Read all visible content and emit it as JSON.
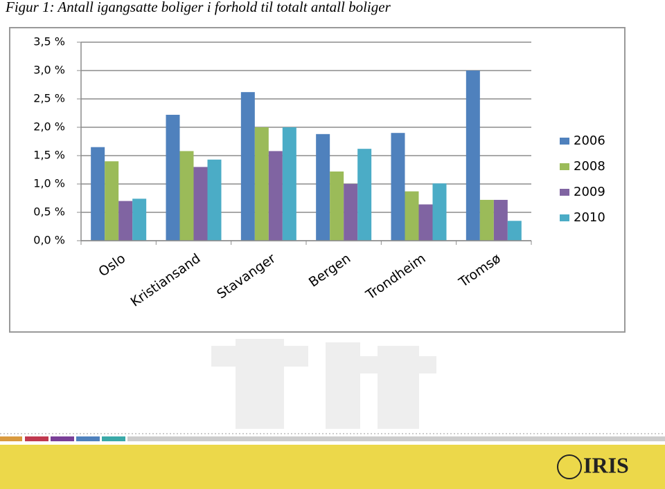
{
  "chart_data": {
    "type": "bar",
    "title": "Figur 1: Antall igangsatte boliger i forhold til totalt antall boliger",
    "categories": [
      "Oslo",
      "Kristiansand",
      "Stavanger",
      "Bergen",
      "Trondheim",
      "Tromsø"
    ],
    "series": [
      {
        "name": "2006",
        "color": "#4f81bd",
        "values": [
          1.65,
          2.22,
          2.62,
          1.88,
          1.9,
          3.0
        ]
      },
      {
        "name": "2008",
        "color": "#9bbb59",
        "values": [
          1.4,
          1.58,
          2.0,
          1.22,
          0.87,
          0.72
        ]
      },
      {
        "name": "2009",
        "color": "#8064a2",
        "values": [
          0.7,
          1.3,
          1.58,
          1.0,
          0.64,
          0.72
        ]
      },
      {
        "name": "2010",
        "color": "#4bacc6",
        "values": [
          0.74,
          1.43,
          2.0,
          1.62,
          1.01,
          0.35
        ]
      }
    ],
    "ylim": [
      0,
      3.5
    ],
    "yticks": [
      {
        "value": 0,
        "label": "0,0 %"
      },
      {
        "value": 0.5,
        "label": "0,5 %"
      },
      {
        "value": 1,
        "label": "1,0 %"
      },
      {
        "value": 1.5,
        "label": "1,5 %"
      },
      {
        "value": 2,
        "label": "2,0 %"
      },
      {
        "value": 2.5,
        "label": "2,5 %"
      },
      {
        "value": 3,
        "label": "3,0 %"
      },
      {
        "value": 3.5,
        "label": "3,5 %"
      }
    ],
    "grid": true,
    "legend": "right"
  },
  "footer": {
    "logo": "IRIS"
  }
}
